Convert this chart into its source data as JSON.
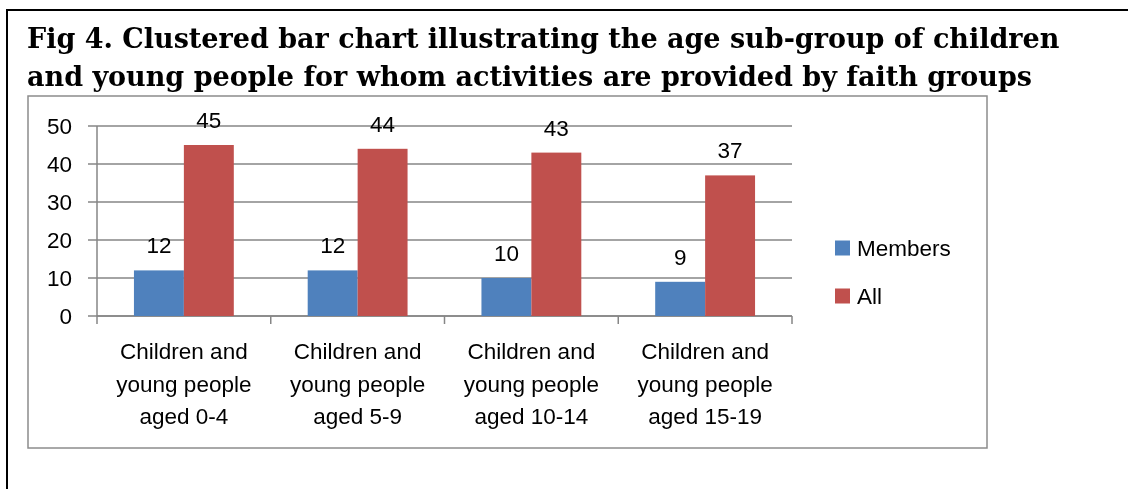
{
  "chart_data": {
    "type": "bar",
    "title": "Fig 4. Clustered bar chart illustrating the age sub-group of children and young people for whom activities are provided by faith groups",
    "categories": [
      "Children and young people aged 0-4",
      "Children and young people aged 5-9",
      "Children and young people aged 10-14",
      "Children and young people aged 15-19"
    ],
    "series": [
      {
        "name": "Members",
        "color": "#4f81bd",
        "values": [
          12,
          12,
          10,
          9
        ]
      },
      {
        "name": "All",
        "color": "#c0504d",
        "values": [
          45,
          44,
          43,
          37
        ]
      }
    ],
    "ylim": [
      0,
      50
    ],
    "yticks": [
      0,
      10,
      20,
      30,
      40,
      50
    ],
    "grid": "y",
    "legend": "right",
    "data_labels": true
  }
}
